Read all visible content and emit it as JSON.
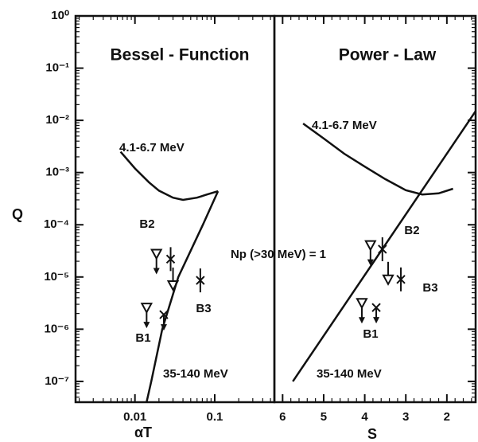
{
  "chart_data": [
    {
      "type": "scatter",
      "title": "Bessel - Function",
      "x_label": "αT",
      "y_label": "Q",
      "xscale": "log",
      "yscale": "log",
      "xlim": [
        0.0018,
        0.56
      ],
      "xticks": [
        0.01,
        0.1
      ],
      "ylim": [
        4e-08,
        1
      ],
      "yticks": [
        {
          "value": 1,
          "label": "10⁰"
        },
        {
          "value": 0.1,
          "label": "10⁻¹"
        },
        {
          "value": 0.01,
          "label": "10⁻²"
        },
        {
          "value": 0.001,
          "label": "10⁻³"
        },
        {
          "value": 0.0001,
          "label": "10⁻⁴"
        },
        {
          "value": 1e-05,
          "label": "10⁻⁵"
        },
        {
          "value": 1e-06,
          "label": "10⁻⁶"
        },
        {
          "value": 1e-07,
          "label": "10⁻⁷"
        }
      ],
      "series": [
        {
          "name": "4.1-6.7 MeV",
          "marker": "line",
          "color": "#111",
          "x": [
            0.0066,
            0.01,
            0.015,
            0.02,
            0.03,
            0.04,
            0.06,
            0.08,
            0.11
          ],
          "y": [
            0.0025,
            0.0012,
            0.00065,
            0.00045,
            0.00033,
            0.0003,
            0.00033,
            0.00038,
            0.00044
          ]
        },
        {
          "name": "35-140 MeV",
          "marker": "line",
          "color": "#111",
          "x": [
            0.014,
            0.016,
            0.022,
            0.035,
            0.071,
            0.11
          ],
          "y": [
            4e-08,
            1e-07,
            1e-06,
            1e-05,
            0.0001,
            0.00044
          ]
        },
        {
          "marker": "triangle-arrow",
          "color": "#111",
          "x": [
            0.0186,
            0.014
          ],
          "y": [
            2.8e-05,
            2.6e-06
          ]
        },
        {
          "marker": "triangle-bar",
          "color": "#111",
          "x": [
            0.03
          ],
          "y": [
            7e-06
          ]
        },
        {
          "marker": "cross-bar",
          "color": "#111",
          "x": [
            0.028,
            0.066
          ],
          "y": [
            2.2e-05,
            8.6e-06
          ]
        },
        {
          "marker": "cross-arrow",
          "color": "#111",
          "x": [
            0.023
          ],
          "y": [
            1.9e-06
          ]
        }
      ],
      "annotations": [
        "B2",
        "B1",
        "B3",
        "Np (>30 MeV) = 1"
      ]
    },
    {
      "type": "scatter",
      "title": "Power - Law",
      "x_label": "S",
      "xscale": "linear",
      "yscale": "log",
      "xlim": [
        6.2,
        1.3
      ],
      "xticks": [
        6,
        5,
        4,
        3,
        2
      ],
      "ylim": [
        4e-08,
        1
      ],
      "yticks": [
        1,
        0.1,
        0.01,
        0.001,
        0.0001,
        1e-05,
        1e-06,
        1e-07
      ],
      "series": [
        {
          "name": "4.1-6.7 MeV",
          "marker": "line",
          "color": "#111",
          "x": [
            5.5,
            5,
            4.5,
            4,
            3.5,
            3,
            2.6,
            2.2,
            1.85
          ],
          "y": [
            0.0087,
            0.0045,
            0.0023,
            0.0013,
            0.00075,
            0.00046,
            0.00038,
            0.0004,
            0.00049
          ]
        },
        {
          "name": "35-140 MeV",
          "marker": "line",
          "color": "#111",
          "x": [
            5.75,
            1.3
          ],
          "y": [
            1e-07,
            0.015
          ]
        },
        {
          "marker": "triangle-arrow",
          "color": "#111",
          "x": [
            3.86,
            4.07
          ],
          "y": [
            4.1e-05,
            3.2e-06
          ]
        },
        {
          "marker": "triangle-bar",
          "color": "#111",
          "x": [
            3.43
          ],
          "y": [
            9e-06
          ]
        },
        {
          "marker": "cross-bar",
          "color": "#111",
          "x": [
            3.57,
            3.12
          ],
          "y": [
            3.4e-05,
            9e-06
          ]
        },
        {
          "marker": "cross-arrow",
          "color": "#111",
          "x": [
            3.72
          ],
          "y": [
            2.6e-06
          ]
        }
      ],
      "annotations": [
        "B2",
        "B3",
        "B1"
      ]
    }
  ]
}
